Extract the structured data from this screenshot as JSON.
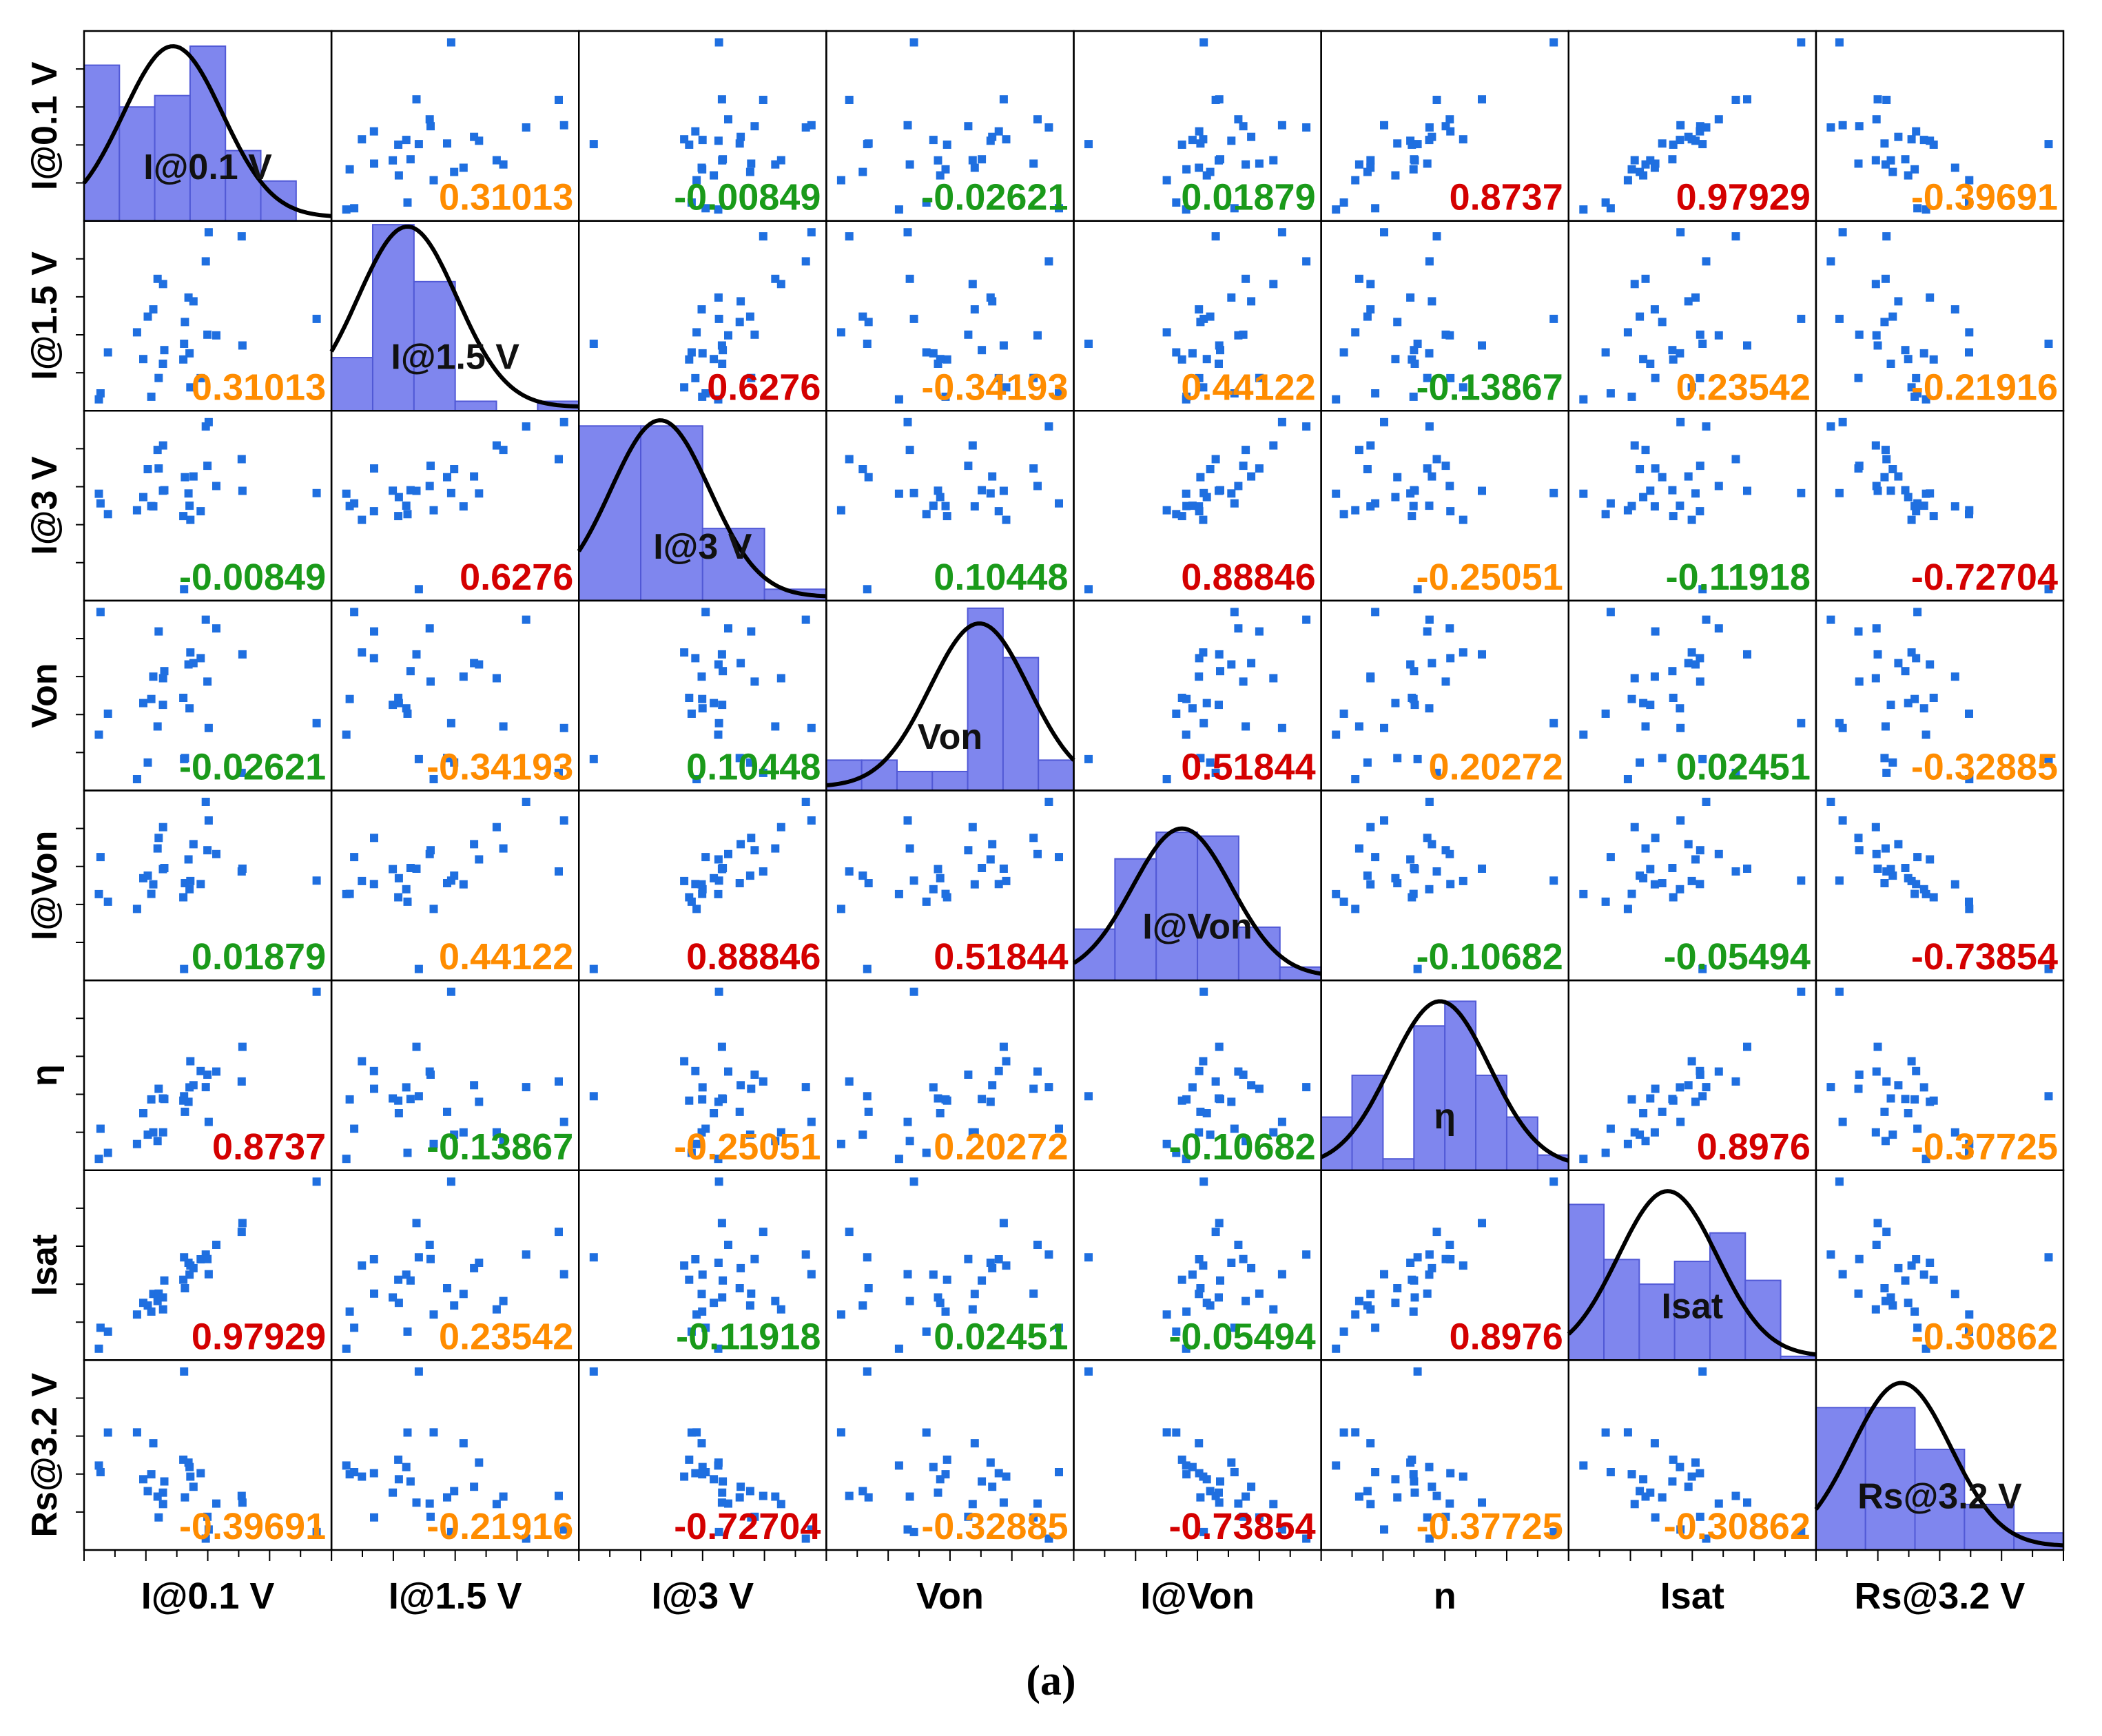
{
  "chart_data": {
    "type": "scatter",
    "title": "",
    "variables": [
      "I@0.1 V",
      "I@1.5 V",
      "I@3 V",
      "Von",
      "I@Von",
      "η",
      "Isat",
      "Rs@3.2 V"
    ],
    "row_labels": [
      "I@0.1 V",
      "I@1.5 V",
      "I@3 V",
      "Von",
      "I@Von",
      "η",
      "Isat",
      "Rs@3.2 V"
    ],
    "col_labels": [
      "I@0.1 V",
      "I@1.5 V",
      "I@3 V",
      "Von",
      "I@Von",
      "n",
      "Isat",
      "Rs@3.2 V"
    ],
    "diag_labels": [
      "I@0.1 V",
      "I@1.5 V",
      "I@3 V",
      "Von",
      "I@Von",
      "η",
      "Isat",
      "Rs@3.2 V"
    ],
    "correlation_text": [
      [
        null,
        "0.31013",
        "-0.00849",
        "-0.02621",
        "0.01879",
        "0.8737",
        "0.97929",
        "-0.39691"
      ],
      [
        "0.31013",
        null,
        "0.6276",
        "-0.34193",
        "0.44122",
        "-0.13867",
        "0.23542",
        "-0.21916"
      ],
      [
        "-0.00849",
        "0.6276",
        null,
        "0.10448",
        "0.88846",
        "-0.25051",
        "-0.11918",
        "-0.72704"
      ],
      [
        "-0.02621",
        "-0.34193",
        "0.10448",
        null,
        "0.51844",
        "0.20272",
        "0.02451",
        "-0.32885"
      ],
      [
        "0.01879",
        "0.44122",
        "0.88846",
        "0.51844",
        null,
        "-0.10682",
        "-0.05494",
        "-0.73854"
      ],
      [
        "0.8737",
        "-0.13867",
        "-0.25051",
        "0.20272",
        "-0.10682",
        null,
        "0.8976",
        "-0.37725"
      ],
      [
        "0.97929",
        "0.23542",
        "-0.11918",
        "0.02451",
        "-0.05494",
        "0.8976",
        null,
        "-0.30862"
      ],
      [
        "-0.39691",
        "-0.21916",
        "-0.72704",
        "-0.32885",
        "-0.73854",
        "-0.37725",
        "-0.30862",
        null
      ]
    ],
    "histograms": [
      [
        0.82,
        0.6,
        0.66,
        0.92,
        0.37,
        0.21,
        0
      ],
      [
        0.28,
        0.98,
        0.68,
        0.05,
        0,
        0.05
      ],
      [
        0.92,
        0.92,
        0.38,
        0.06
      ],
      [
        0.16,
        0.16,
        0.1,
        0.1,
        0.96,
        0.7,
        0.16
      ],
      [
        0.27,
        0.64,
        0.78,
        0.76,
        0.28,
        0.07
      ],
      [
        0.28,
        0.5,
        0.06,
        0.76,
        0.89,
        0.5,
        0.28,
        0.08
      ],
      [
        0.82,
        0.53,
        0.4,
        0.52,
        0.67,
        0.42,
        0.02
      ],
      [
        0.75,
        0.75,
        0.53,
        0.24,
        0.09
      ]
    ],
    "normal_fit_peaks": [
      0.9,
      0.95,
      0.93,
      0.86,
      0.78,
      0.87,
      0.87,
      0.86
    ],
    "series_color": "#1f6fe0",
    "histogram_color": "#7f86ee",
    "positive_strong_color": "#d40000",
    "moderate_color": "#ff8c00",
    "weak_color": "#1a9a1a"
  },
  "caption": "(a)"
}
